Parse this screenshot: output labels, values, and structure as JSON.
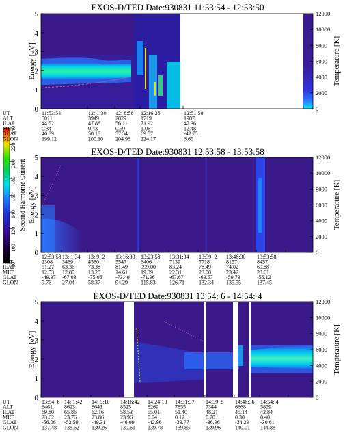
{
  "colorbar": {
    "label": "Second Harmonic Current",
    "ticks": [
      "80",
      "100",
      "120",
      "140",
      "160",
      "180",
      "200",
      "220",
      "240"
    ]
  },
  "chart_data": [
    {
      "type": "heatmap",
      "title": "EXOS-D/TED   Date:930831  11:53:54 - 12:53:50",
      "ylabel": "Energy [eV]",
      "y2label": "Temperature [K]",
      "ylim": [
        0,
        5
      ],
      "y2lim": [
        0,
        12000
      ],
      "yticks": [
        "0",
        "1",
        "2",
        "3",
        "4",
        "5"
      ],
      "y2ticks": [
        "0",
        "2000",
        "4000",
        "6000",
        "8000",
        "10000",
        "12000"
      ],
      "data_gaps": [
        [
          12.43,
          12.88
        ]
      ],
      "orbit_table": {
        "row_labels": [
          "UT",
          "ALT",
          "ILAT",
          "MLT",
          "GLAT",
          "GLON"
        ],
        "columns": [
          [
            "11:53:54",
            "5011",
            "44.52",
            "0.34",
            "46.89",
            "199.12"
          ],
          [
            "12: 1:30",
            "3949",
            "47.88",
            "0.43",
            "50.18",
            "200.10"
          ],
          [
            "12: 8:58",
            "2829",
            "56.11",
            "0.59",
            "57.54",
            "204.98"
          ],
          [
            "12:16:26",
            "1719",
            "71.92",
            "1.06",
            "69.57",
            "224.17"
          ],
          [
            "12:51:50",
            "1987",
            "47.36",
            "12.48",
            "-42.75",
            "6.65"
          ]
        ]
      }
    },
    {
      "type": "heatmap",
      "title": "EXOS-D/TED   Date:930831  12:53:58 - 13:53:58",
      "ylabel": "Energy [eV]",
      "y2label": "Temperature [K]",
      "ylim": [
        0,
        5
      ],
      "y2lim": [
        0,
        12000
      ],
      "yticks": [
        "0",
        "1",
        "2",
        "3",
        "4",
        "5"
      ],
      "y2ticks": [
        "0",
        "2000",
        "4000",
        "6000",
        "8000",
        "10000",
        "12000"
      ],
      "data_gaps": [],
      "orbit_table": {
        "row_labels": [
          "UT",
          "ALT",
          "ILAT",
          "MLT",
          "GLAT",
          "GLON"
        ],
        "columns": [
          [
            "12:53:58",
            "2308",
            "51.27",
            "12.53",
            "-49.37",
            "9.76"
          ],
          [
            "13: 1:34",
            "3469",
            "63.36",
            "12.80",
            "-67.03",
            "27.04"
          ],
          [
            "13: 9: 2",
            "4560",
            "73.38",
            "13.28",
            "-75.06",
            "58.37"
          ],
          [
            "13:16:30",
            "5547",
            "81.49",
            "14.61",
            "-73.40",
            "94.29"
          ],
          [
            "13:23:58",
            "6406",
            "999.00",
            "19.39",
            "-71.96",
            "115.83"
          ],
          [
            "13:31:34",
            "7139",
            "83.24",
            "22.31",
            "-67.67",
            "126.71"
          ],
          [
            "13:39: 2",
            "7718",
            "78.49",
            "23.08",
            "-63.57",
            "132.34"
          ],
          [
            "13:46:30",
            "8157",
            "74.02",
            "23.42",
            "-59.73",
            "135.55"
          ],
          [
            "13:53:58",
            "8457",
            "69.88",
            "23.61",
            "-56.12",
            "137.45"
          ]
        ]
      }
    },
    {
      "type": "heatmap",
      "title": "EXOS-D/TED   Date:930831  13:54: 6 - 14:54: 4",
      "ylabel": "Energy [eV]",
      "y2label": "Temperature [K]",
      "ylim": [
        0,
        5
      ],
      "y2lim": [
        0,
        12000
      ],
      "yticks": [
        "0",
        "1",
        "2",
        "3",
        "4",
        "5"
      ],
      "y2ticks": [
        "0",
        "2000",
        "4000",
        "6000",
        "8000",
        "10000",
        "12000"
      ],
      "data_gaps": [
        [
          14.01,
          14.03
        ],
        [
          14.38,
          14.39
        ],
        [
          14.47,
          14.49
        ],
        [
          14.5,
          14.51
        ]
      ],
      "orbit_table": {
        "row_labels": [
          "UT",
          "ALT",
          "ILAT",
          "MLT",
          "GLAT",
          "GLON"
        ],
        "columns": [
          [
            "13:54: 6",
            "8461",
            "69.80",
            "23.62",
            "-56.06",
            "137.48"
          ],
          [
            "14: 1:42",
            "8623",
            "65.86",
            "23.76",
            "-52.59",
            "138.62"
          ],
          [
            "14: 9:10",
            "8643",
            "62.16",
            "23.86",
            "-49.31",
            "139.26"
          ],
          [
            "14:16:42",
            "8525",
            "58.53",
            "23.96",
            "-46.09",
            "139.61"
          ],
          [
            "14:24:10",
            "8269",
            "55.01",
            "0.04",
            "-42.96",
            "139.78"
          ],
          [
            "14:31:37",
            "7855",
            "51.40",
            "0.12",
            "-39.77",
            "139.85"
          ],
          [
            "14:39: 5",
            "7344",
            "48.21",
            "0.20",
            "-36.96",
            "139.96"
          ],
          [
            "14:46:36",
            "6668",
            "45.14",
            "0.30",
            "-34.29",
            "140.01"
          ],
          [
            "14:54: 4",
            "5859",
            "42.84",
            "0.40",
            "-30.61",
            "144.88"
          ]
        ]
      }
    }
  ]
}
